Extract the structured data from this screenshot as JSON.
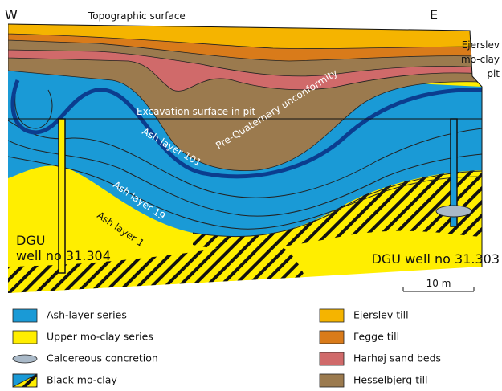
{
  "header": {
    "west": "W",
    "east": "E",
    "surface": "Topographic surface",
    "pit": [
      "Ejerslev",
      "mo-clay",
      "pit"
    ]
  },
  "section": {
    "excavation": "Excavation surface in pit",
    "unconformity": "Pre-Quaternary unconformity",
    "ash_layers": [
      "Ash layer 101",
      "Ash layer 19",
      "Ash layer 1"
    ],
    "wells": [
      [
        "DGU",
        "well no 31.304"
      ],
      [
        "DGU well no 31.303"
      ]
    ],
    "scale": "10 m"
  },
  "legend": {
    "items": [
      "Ash-layer series",
      "Upper mo-clay series",
      "Calcereous concretion",
      "Black mo-clay",
      "Ejerslev till",
      "Fegge till",
      "Harhøj sand beds",
      "Hesselbjerg till"
    ]
  }
}
